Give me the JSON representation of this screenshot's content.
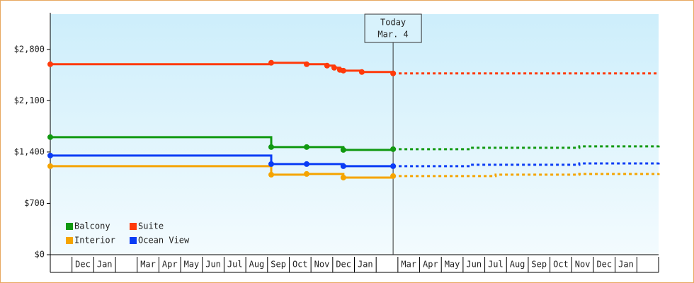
{
  "chart_data": {
    "type": "step-line",
    "categories": [
      null,
      "Dec",
      "Jan",
      null,
      "Mar",
      "Apr",
      "May",
      "Jun",
      "Jul",
      "Aug",
      "Sep",
      "Oct",
      "Nov",
      "Dec",
      "Jan",
      null,
      "Mar",
      "Apr",
      "May",
      "Jun",
      "Jul",
      "Aug",
      "Sep",
      "Oct",
      "Nov",
      "Dec",
      "Jan",
      null
    ],
    "xlim": [
      0,
      28
    ],
    "ylim": [
      0,
      3280
    ],
    "yticks": [
      {
        "value": 0,
        "label": "$0"
      },
      {
        "value": 700,
        "label": "$700"
      },
      {
        "value": 1400,
        "label": "$1,400"
      },
      {
        "value": 2100,
        "label": "$2,100"
      },
      {
        "value": 2800,
        "label": "$2,800"
      }
    ],
    "today": {
      "x": 15.78,
      "label": [
        "Today",
        "Mar. 4"
      ]
    },
    "series": [
      {
        "name": "Balcony",
        "color": "#119911",
        "x": [
          0,
          10.17,
          11.8,
          13.49,
          15.78,
          19.36,
          24.35,
          28
        ],
        "values": [
          1603,
          1468,
          1468,
          1429,
          1439,
          1458,
          1477,
          1497
        ]
      },
      {
        "name": "Suite",
        "color": "#ff3a0a",
        "x": [
          0,
          10.17,
          11.8,
          12.74,
          13.07,
          13.33,
          13.49,
          14.34,
          15.78,
          28
        ],
        "values": [
          2597,
          2617,
          2597,
          2578,
          2549,
          2520,
          2510,
          2491,
          2472,
          2472
        ]
      },
      {
        "name": "Interior",
        "color": "#f5a400",
        "x": [
          0,
          10.17,
          11.8,
          13.49,
          15.78,
          20.5,
          24.35,
          28
        ],
        "values": [
          1207,
          1091,
          1101,
          1052,
          1072,
          1091,
          1101,
          1110
        ]
      },
      {
        "name": "Ocean View",
        "color": "#0a3cf5",
        "x": [
          0,
          10.17,
          11.8,
          13.49,
          15.78,
          19.36,
          24.35,
          28
        ],
        "values": [
          1352,
          1236,
          1236,
          1207,
          1207,
          1226,
          1245,
          1255
        ]
      }
    ]
  }
}
